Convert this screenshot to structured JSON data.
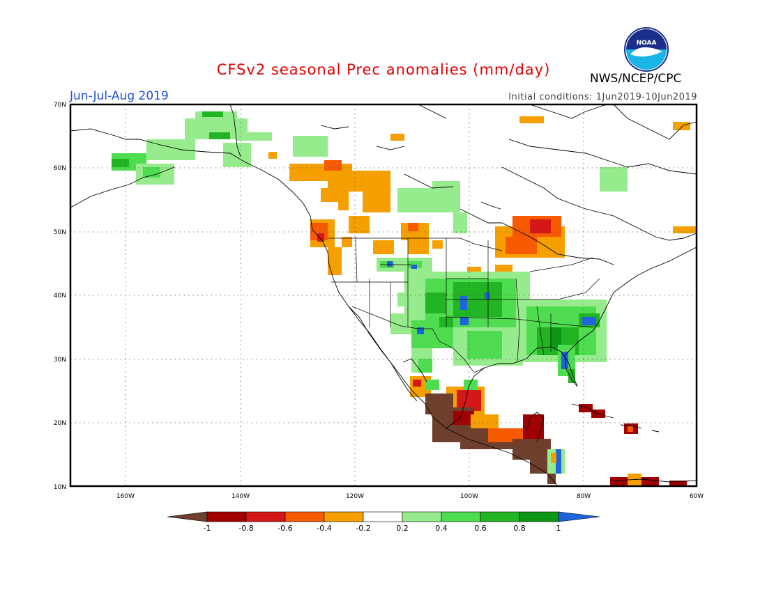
{
  "title": "CFSv2 seasonal Prec anomalies (mm/day)",
  "period": "Jun-Jul-Aug 2019",
  "initial_conditions": "Initial conditions: 1Jun2019-10Jun2019",
  "agency": "NWS/NCEP/CPC",
  "logo_text": "NOAA",
  "axes": {
    "lat_labels": [
      "70N",
      "60N",
      "50N",
      "40N",
      "30N",
      "20N",
      "10N"
    ],
    "lon_labels": [
      "160W",
      "140W",
      "120W",
      "100W",
      "80W",
      "60W"
    ]
  },
  "colorbar": {
    "labels": [
      "-1",
      "-0.8",
      "-0.6",
      "-0.4",
      "-0.2",
      "0.2",
      "0.4",
      "0.6",
      "0.8",
      "1"
    ],
    "colors": [
      "#6e3f2c",
      "#a00000",
      "#d41818",
      "#f55a00",
      "#f5a000",
      "#ffffff",
      "#96ec8c",
      "#50dc50",
      "#22b422",
      "#0e9616",
      "#1e64dc"
    ]
  },
  "colors": {
    "dry1": "#6e3f2c",
    "dry08": "#a00000",
    "dry06": "#d41818",
    "dry04": "#f55a00",
    "dry02": "#f5a000",
    "wet02": "#96ec8c",
    "wet04": "#50dc50",
    "wet06": "#22b422",
    "wet08": "#0e9616",
    "wet1": "#1e64dc"
  }
}
